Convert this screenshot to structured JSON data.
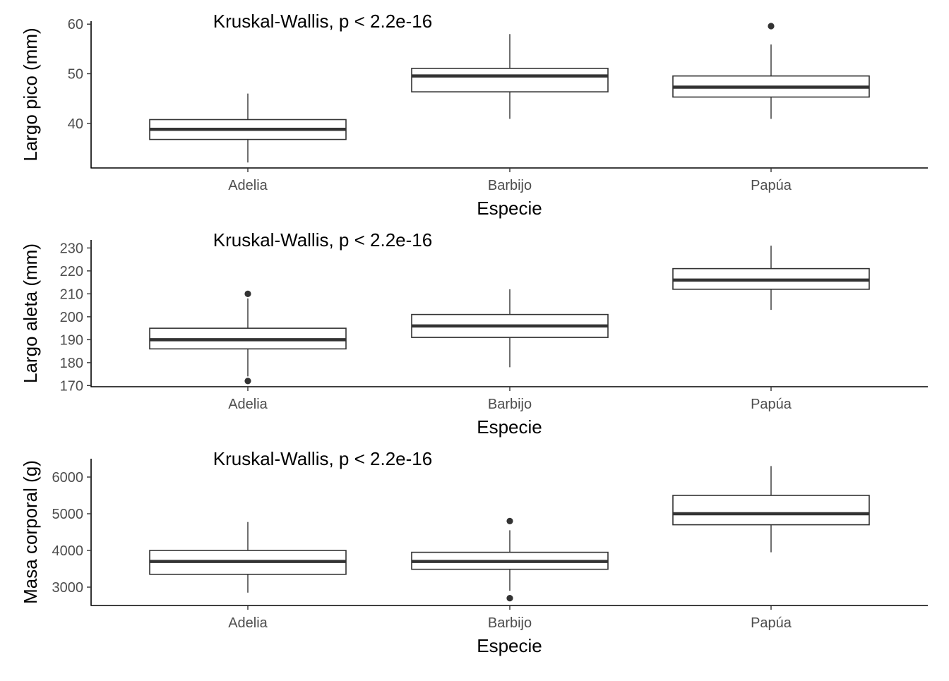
{
  "chart_data": [
    {
      "type": "boxplot",
      "xlabel": "Especie",
      "ylabel": "Largo pico (mm)",
      "annotation": "Kruskal-Wallis, p < 2.2e-16",
      "categories": [
        "Adelia",
        "Barbijo",
        "Papúa"
      ],
      "yticks": [
        40,
        50,
        60
      ],
      "ylim": [
        31,
        60.6
      ],
      "boxes": [
        {
          "category": "Adelia",
          "whisker_low": 32.1,
          "q1": 36.75,
          "median": 38.8,
          "q3": 40.75,
          "whisker_high": 46.0,
          "outliers": []
        },
        {
          "category": "Barbijo",
          "whisker_low": 40.9,
          "q1": 46.35,
          "median": 49.55,
          "q3": 51.08,
          "whisker_high": 58.0,
          "outliers": []
        },
        {
          "category": "Papúa",
          "whisker_low": 40.9,
          "q1": 45.3,
          "median": 47.3,
          "q3": 49.55,
          "whisker_high": 55.9,
          "outliers": [
            59.6
          ]
        }
      ]
    },
    {
      "type": "boxplot",
      "xlabel": "Especie",
      "ylabel": "Largo aleta (mm)",
      "annotation": "Kruskal-Wallis, p < 2.2e-16",
      "categories": [
        "Adelia",
        "Barbijo",
        "Papúa"
      ],
      "yticks": [
        170,
        180,
        190,
        200,
        210,
        220,
        230
      ],
      "ylim": [
        169.5,
        233.5
      ],
      "boxes": [
        {
          "category": "Adelia",
          "whisker_low": 174,
          "q1": 186,
          "median": 190,
          "q3": 195,
          "whisker_high": 208,
          "outliers": [
            172,
            210
          ]
        },
        {
          "category": "Barbijo",
          "whisker_low": 178,
          "q1": 191,
          "median": 196,
          "q3": 201,
          "whisker_high": 212,
          "outliers": []
        },
        {
          "category": "Papúa",
          "whisker_low": 203,
          "q1": 212,
          "median": 216,
          "q3": 221,
          "whisker_high": 231,
          "outliers": []
        }
      ]
    },
    {
      "type": "boxplot",
      "xlabel": "Especie",
      "ylabel": "Masa corporal (g)",
      "annotation": "Kruskal-Wallis, p < 2.2e-16",
      "categories": [
        "Adelia",
        "Barbijo",
        "Papúa"
      ],
      "yticks": [
        3000,
        4000,
        5000,
        6000
      ],
      "ylim": [
        2500,
        6500
      ],
      "boxes": [
        {
          "category": "Adelia",
          "whisker_low": 2850,
          "q1": 3350,
          "median": 3700,
          "q3": 4000,
          "whisker_high": 4775,
          "outliers": []
        },
        {
          "category": "Barbijo",
          "whisker_low": 2900,
          "q1": 3487,
          "median": 3700,
          "q3": 3950,
          "whisker_high": 4550,
          "outliers": [
            2700,
            4800
          ]
        },
        {
          "category": "Papúa",
          "whisker_low": 3950,
          "q1": 4700,
          "median": 5000,
          "q3": 5500,
          "whisker_high": 6300,
          "outliers": []
        }
      ]
    }
  ]
}
